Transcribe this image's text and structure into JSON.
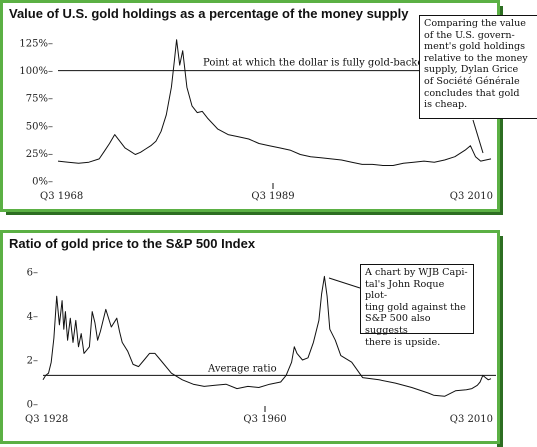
{
  "chart_data": [
    {
      "type": "line",
      "title": "Value of U.S. gold holdings as a percentage of the money supply",
      "y_ticks": [
        "125%–",
        "100%–",
        "75%–",
        "50%–",
        "25%–",
        "0%–"
      ],
      "ylim": [
        0,
        125
      ],
      "x_labels": [
        "Q3 1968",
        "Q3 1989",
        "Q3 2010"
      ],
      "xlim": [
        1968.5,
        2010.5
      ],
      "reference_line": {
        "value": 100,
        "label": "Point at which the dollar is fully gold-backed"
      },
      "callout": "Comparing the value\nof the U.S. govern-\nment's gold holdings\nrelative to the money\nsupply, Dylan Grice\nof Société Générale\nconcludes that gold\nis cheap.",
      "series": [
        {
          "x": [
            1968.5,
            1969.5,
            1970.5,
            1971.5,
            1972.5,
            1973.0,
            1973.5,
            1974.0,
            1974.5,
            1975.0,
            1975.5,
            1976.0,
            1976.5,
            1977.0,
            1977.5,
            1978.0,
            1978.5,
            1979.0,
            1979.5,
            1979.8,
            1980.0,
            1980.3,
            1980.6,
            1981.0,
            1981.5,
            1982.0,
            1982.5,
            1983.0,
            1984.0,
            1985.0,
            1986.0,
            1987.0,
            1988.0,
            1989.0,
            1990.0,
            1991.0,
            1992.0,
            1993.0,
            1994.0,
            1995.0,
            1996.0,
            1997.0,
            1998.0,
            1999.0,
            2000.0,
            2001.0,
            2002.0,
            2003.0,
            2004.0,
            2005.0,
            2006.0,
            2007.0,
            2008.0,
            2008.5,
            2009.0,
            2009.5,
            2010.0,
            2010.5
          ],
          "y": [
            18,
            17,
            16,
            17,
            20,
            27,
            34,
            42,
            36,
            30,
            27,
            24,
            26,
            29,
            32,
            36,
            45,
            60,
            85,
            110,
            128,
            105,
            118,
            85,
            68,
            62,
            63,
            57,
            47,
            42,
            40,
            38,
            34,
            32,
            30,
            28,
            24,
            22,
            21,
            20,
            19,
            17,
            15,
            15,
            14,
            14,
            16,
            17,
            18,
            17,
            19,
            22,
            28,
            32,
            22,
            18,
            19,
            20
          ]
        }
      ]
    },
    {
      "type": "line",
      "title": "Ratio of gold price to the S&P 500 Index",
      "y_ticks": [
        "6–",
        "4–",
        "2–",
        "0–"
      ],
      "ylim": [
        0,
        6
      ],
      "x_labels": [
        "Q3 1928",
        "Q3 1960",
        "Q3 2010"
      ],
      "xlim": [
        1928.5,
        2010.5
      ],
      "reference_line": {
        "value": 1.3,
        "label": "Average ratio"
      },
      "callout": "A chart by WJB Capi-\ntal's John Roque plot-\nting gold against the\nS&P 500 also suggests\nthere is upside.",
      "series": [
        {
          "x": [
            1928.5,
            1929.0,
            1929.5,
            1930.0,
            1930.5,
            1931.0,
            1931.5,
            1932.0,
            1932.3,
            1932.6,
            1933.0,
            1933.5,
            1934.0,
            1934.5,
            1935.0,
            1935.5,
            1936.0,
            1937.0,
            1937.5,
            1938.0,
            1938.5,
            1939.0,
            1940.0,
            1941.0,
            1942.0,
            1942.5,
            1943.0,
            1944.0,
            1945.0,
            1946.0,
            1947.0,
            1948.0,
            1949.0,
            1950.0,
            1952.0,
            1954.0,
            1956.0,
            1958.0,
            1960.0,
            1962.0,
            1964.0,
            1966.0,
            1968.0,
            1970.0,
            1972.0,
            1973.0,
            1974.0,
            1974.5,
            1975.0,
            1976.0,
            1977.0,
            1978.0,
            1979.0,
            1979.5,
            1980.0,
            1980.5,
            1981.0,
            1982.0,
            1983.0,
            1985.0,
            1987.0,
            1990.0,
            1993.0,
            1996.0,
            1999.0,
            2000.0,
            2002.0,
            2004.0,
            2006.0,
            2007.0,
            2008.0,
            2008.5,
            2009.0,
            2009.5,
            2010.0,
            2010.5
          ],
          "y": [
            1.1,
            1.3,
            1.4,
            1.9,
            3.0,
            4.9,
            3.6,
            4.7,
            3.4,
            4.2,
            2.9,
            3.9,
            2.8,
            3.8,
            2.6,
            3.2,
            2.3,
            2.6,
            4.2,
            3.7,
            2.9,
            3.3,
            4.3,
            3.5,
            3.9,
            3.3,
            2.8,
            2.4,
            1.8,
            1.7,
            2.0,
            2.3,
            2.3,
            2.0,
            1.4,
            1.1,
            0.9,
            0.8,
            0.85,
            0.9,
            0.7,
            0.8,
            0.75,
            0.9,
            1.0,
            1.3,
            1.9,
            2.6,
            2.3,
            2.0,
            2.1,
            2.8,
            3.8,
            5.0,
            5.8,
            4.9,
            3.4,
            2.9,
            2.2,
            1.9,
            1.2,
            1.1,
            0.95,
            0.75,
            0.5,
            0.4,
            0.35,
            0.6,
            0.65,
            0.7,
            0.85,
            1.0,
            1.3,
            1.2,
            1.1,
            1.15
          ]
        }
      ]
    }
  ]
}
